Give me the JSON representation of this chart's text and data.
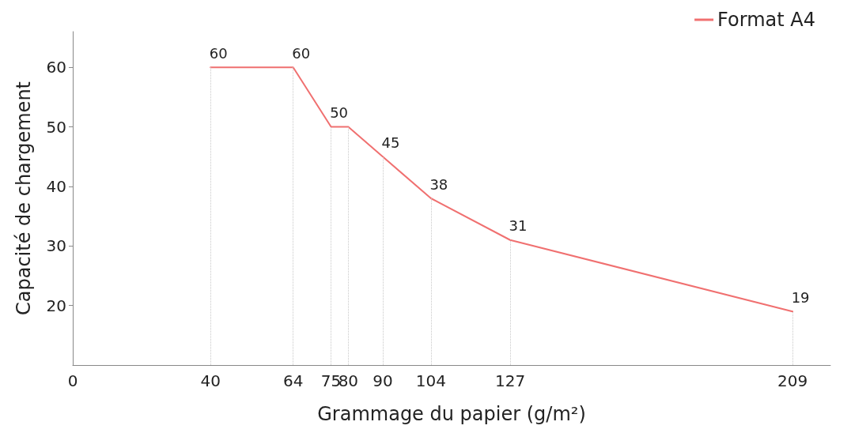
{
  "chart_data": {
    "type": "line",
    "xlabel": "Grammage du papier (g/m²)",
    "ylabel": "Capacité de chargement",
    "x": [
      40,
      64,
      75,
      80,
      90,
      104,
      127,
      209
    ],
    "series": [
      {
        "name": "Format A4",
        "color": "#f07070",
        "values": [
          60,
          60,
          50,
          50,
          45,
          38,
          31,
          19
        ],
        "value_labels": [
          "60",
          "60",
          "50",
          null,
          "45",
          "38",
          "31",
          "19"
        ]
      }
    ],
    "xlim": [
      0,
      220
    ],
    "xticks": [
      0,
      40,
      64,
      75,
      80,
      90,
      104,
      127,
      209
    ],
    "ylim": [
      10,
      66
    ],
    "yticks": [
      20,
      30,
      40,
      50,
      60
    ],
    "grid": "x",
    "legend": "top right",
    "marker": "none",
    "line_style": "solid"
  }
}
